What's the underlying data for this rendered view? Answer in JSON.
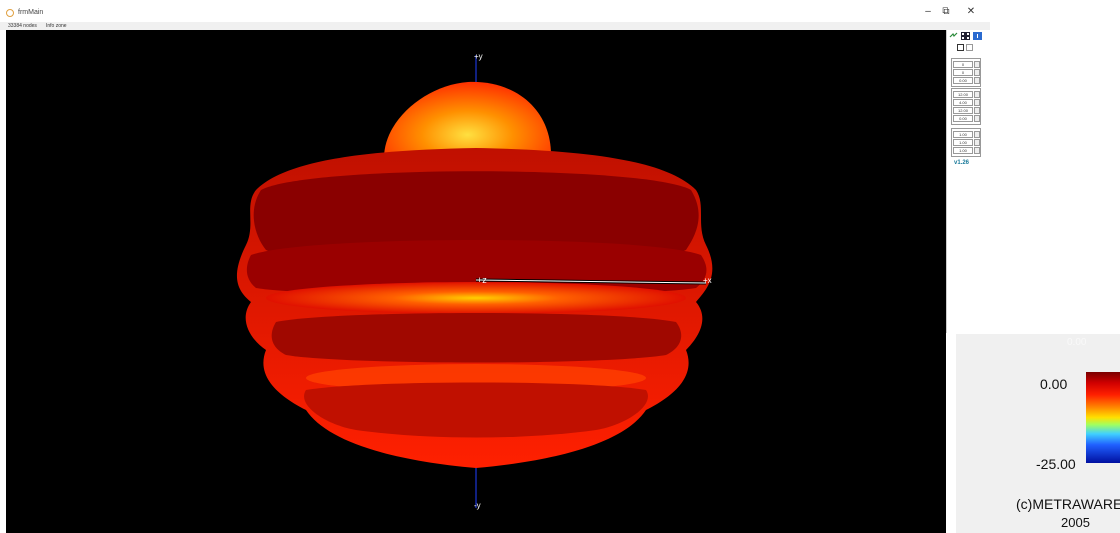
{
  "window": {
    "title": "frmMain",
    "minimize": "–",
    "restore": "⧉",
    "close": "✕"
  },
  "info_bar": {
    "nodes": "33384 nodes",
    "zone": "Info zone"
  },
  "axes": {
    "plus_y": "+y",
    "minus_y": "-y",
    "plus_z": "+z",
    "plus_x": "+x"
  },
  "toolbar": {
    "icons": [
      "refresh-icon",
      "film-icon",
      "info-icon"
    ]
  },
  "controls": {
    "group1": [
      "0",
      "0",
      "0.00"
    ],
    "group2": [
      "12.00",
      "4.00",
      "12.00",
      "0.00"
    ],
    "group3": [
      "1.00",
      "1.00",
      "1.00"
    ]
  },
  "version": "v1.26",
  "legend": {
    "scale_top": "0.00",
    "tick_top": "0.00",
    "tick_bottom": "-25.00",
    "copyright_line1": "(c)METRAWARE",
    "copyright_line2": "2005",
    "colors": [
      "#7a0000",
      "#ff2000",
      "#ffe000",
      "#40d0ff",
      "#0010a0"
    ]
  }
}
